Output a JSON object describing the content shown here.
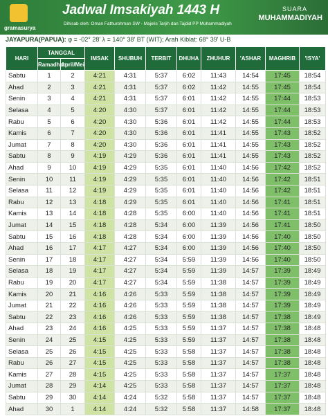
{
  "header": {
    "logo": "gramasurya",
    "title": "Jadwal Imsakiyah 1443 H",
    "subtitle": "Dihisab oleh: Oman Fathurohman SW - Majelis Tarjih dan Tajdid PP Muhammadiyah",
    "brand_top": "SUARA",
    "brand": "MUHAMMADIYAH",
    "location": "JAYAPURA(PAPUA):",
    "coordinates": "φ = -02° 28' λ = 140° 38' BT (WIT); Arah Kiblat: 68° 39' U-B"
  },
  "table": {
    "headers": {
      "day": "HARI",
      "date_group": "TANGGAL",
      "ramadhan": "Ramadhan",
      "gregorian": "April/Mei",
      "times": [
        "IMSAK",
        "SHUBUH",
        "TERBIT",
        "DHUHA",
        "ZHUHUR",
        "'ASHAR",
        "MAGHRIB",
        "'ISYA'"
      ]
    },
    "rows": [
      [
        "Sabtu",
        "1",
        "2",
        "4:21",
        "4:31",
        "5:37",
        "6:02",
        "11:43",
        "14:54",
        "17:45",
        "18:54"
      ],
      [
        "Ahad",
        "2",
        "3",
        "4:21",
        "4:31",
        "5:37",
        "6:02",
        "11:42",
        "14:55",
        "17:45",
        "18:54"
      ],
      [
        "Senin",
        "3",
        "4",
        "4:21",
        "4:31",
        "5:37",
        "6:01",
        "11:42",
        "14:55",
        "17:44",
        "18:53"
      ],
      [
        "Selasa",
        "4",
        "5",
        "4:20",
        "4:30",
        "5:37",
        "6:01",
        "11:42",
        "14:55",
        "17:44",
        "18:53"
      ],
      [
        "Rabu",
        "5",
        "6",
        "4:20",
        "4:30",
        "5:36",
        "6:01",
        "11:42",
        "14:55",
        "17:44",
        "18:53"
      ],
      [
        "Kamis",
        "6",
        "7",
        "4:20",
        "4:30",
        "5:36",
        "6:01",
        "11:41",
        "14:55",
        "17:43",
        "18:52"
      ],
      [
        "Jumat",
        "7",
        "8",
        "4:20",
        "4:30",
        "5:36",
        "6:01",
        "11:41",
        "14:55",
        "17:43",
        "18:52"
      ],
      [
        "Sabtu",
        "8",
        "9",
        "4:19",
        "4:29",
        "5:36",
        "6:01",
        "11:41",
        "14:55",
        "17:43",
        "18:52"
      ],
      [
        "Ahad",
        "9",
        "10",
        "4:19",
        "4:29",
        "5:35",
        "6:01",
        "11:40",
        "14:56",
        "17:42",
        "18:52"
      ],
      [
        "Senin",
        "10",
        "11",
        "4:19",
        "4:29",
        "5:35",
        "6:01",
        "11:40",
        "14:56",
        "17:42",
        "18:51"
      ],
      [
        "Selasa",
        "11",
        "12",
        "4:19",
        "4:29",
        "5:35",
        "6:01",
        "11:40",
        "14:56",
        "17:42",
        "18:51"
      ],
      [
        "Rabu",
        "12",
        "13",
        "4:18",
        "4:29",
        "5:35",
        "6:01",
        "11:40",
        "14:56",
        "17:41",
        "18:51"
      ],
      [
        "Kamis",
        "13",
        "14",
        "4:18",
        "4:28",
        "5:35",
        "6:00",
        "11:40",
        "14:56",
        "17:41",
        "18:51"
      ],
      [
        "Jumat",
        "14",
        "15",
        "4:18",
        "4:28",
        "5:34",
        "6:00",
        "11:39",
        "14:56",
        "17:41",
        "18:50"
      ],
      [
        "Sabtu",
        "15",
        "16",
        "4:18",
        "4:28",
        "5:34",
        "6:00",
        "11:39",
        "14:56",
        "17:40",
        "18:50"
      ],
      [
        "Ahad",
        "16",
        "17",
        "4:17",
        "4:27",
        "5:34",
        "6:00",
        "11:39",
        "14:56",
        "17:40",
        "18:50"
      ],
      [
        "Senin",
        "17",
        "18",
        "4:17",
        "4:27",
        "5:34",
        "5:59",
        "11:39",
        "14:56",
        "17:40",
        "18:50"
      ],
      [
        "Selasa",
        "18",
        "19",
        "4:17",
        "4:27",
        "5:34",
        "5:59",
        "11:39",
        "14:57",
        "17:39",
        "18:49"
      ],
      [
        "Rabu",
        "19",
        "20",
        "4:17",
        "4:27",
        "5:34",
        "5:59",
        "11:38",
        "14:57",
        "17:39",
        "18:49"
      ],
      [
        "Kamis",
        "20",
        "21",
        "4:16",
        "4:26",
        "5:33",
        "5:59",
        "11:38",
        "14:57",
        "17:39",
        "18:49"
      ],
      [
        "Jumat",
        "21",
        "22",
        "4:16",
        "4:26",
        "5:33",
        "5:59",
        "11:38",
        "14:57",
        "17:39",
        "18:49"
      ],
      [
        "Sabtu",
        "22",
        "23",
        "4:16",
        "4:26",
        "5:33",
        "5:59",
        "11:38",
        "14:57",
        "17:38",
        "18:49"
      ],
      [
        "Ahad",
        "23",
        "24",
        "4:16",
        "4:25",
        "5:33",
        "5:59",
        "11:37",
        "14:57",
        "17:38",
        "18:48"
      ],
      [
        "Senin",
        "24",
        "25",
        "4:15",
        "4:25",
        "5:33",
        "5:59",
        "11:37",
        "14:57",
        "17:38",
        "18:48"
      ],
      [
        "Selasa",
        "25",
        "26",
        "4:15",
        "4:25",
        "5:33",
        "5:58",
        "11:37",
        "14:57",
        "17:38",
        "18:48"
      ],
      [
        "Rabu",
        "26",
        "27",
        "4:15",
        "4:25",
        "5:33",
        "5:58",
        "11:37",
        "14:57",
        "17:38",
        "18:48"
      ],
      [
        "Kamis",
        "27",
        "28",
        "4:15",
        "4:25",
        "5:33",
        "5:58",
        "11:37",
        "14:57",
        "17:37",
        "18:48"
      ],
      [
        "Jumat",
        "28",
        "29",
        "4:14",
        "4:25",
        "5:33",
        "5:58",
        "11:37",
        "14:57",
        "17:37",
        "18:48"
      ],
      [
        "Sabtu",
        "29",
        "30",
        "4:14",
        "4:24",
        "5:32",
        "5:58",
        "11:37",
        "14:57",
        "17:37",
        "18:48"
      ],
      [
        "Ahad",
        "30",
        "1",
        "4:14",
        "4:24",
        "5:32",
        "5:58",
        "11:37",
        "14:58",
        "17:37",
        "18:48"
      ]
    ]
  }
}
